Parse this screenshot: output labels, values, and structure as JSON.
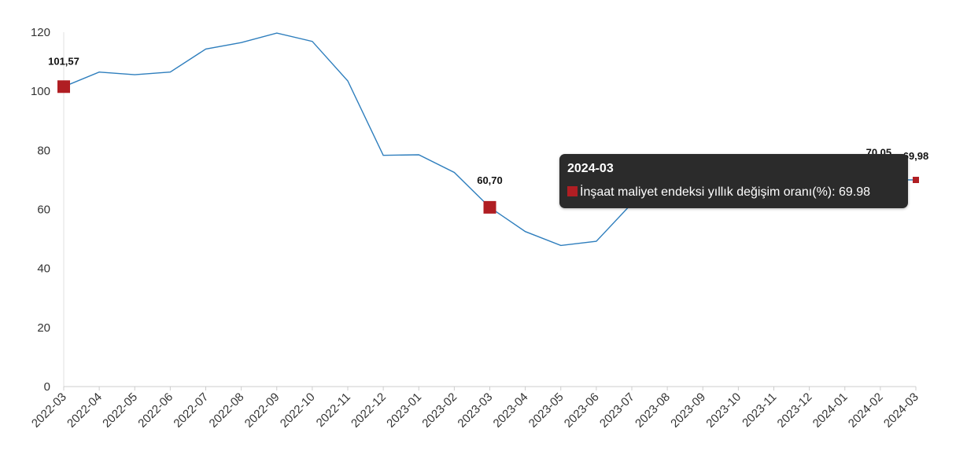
{
  "chart_data": {
    "type": "line",
    "categories": [
      "2022-03",
      "2022-04",
      "2022-05",
      "2022-06",
      "2022-07",
      "2022-08",
      "2022-09",
      "2022-10",
      "2022-11",
      "2022-12",
      "2023-01",
      "2023-02",
      "2023-03",
      "2023-04",
      "2023-05",
      "2023-06",
      "2023-07",
      "2023-08",
      "2023-09",
      "2023-10",
      "2023-11",
      "2023-12",
      "2024-01",
      "2024-02",
      "2024-03"
    ],
    "series": [
      {
        "name": "İnşaat maliyet endeksi yıllık değişim oranı(%)",
        "values": [
          101.57,
          106.5,
          105.6,
          106.5,
          114.3,
          116.5,
          119.7,
          116.9,
          103.5,
          78.3,
          78.5,
          72.5,
          60.7,
          52.5,
          47.8,
          49.2,
          62.0,
          66.0,
          66.5,
          66.0,
          65.5,
          66.0,
          67.0,
          70.05,
          69.98
        ]
      }
    ],
    "ylim": [
      0,
      120
    ],
    "yticks": [
      0,
      20,
      40,
      60,
      80,
      100,
      120
    ],
    "grid": false,
    "line_color": "#2e7ebd",
    "marker_color": "#b01e23",
    "active_marker_color": "#1b2a3e",
    "data_labels": [
      {
        "index": 0,
        "text": "101,57"
      },
      {
        "index": 12,
        "text": "60,70"
      },
      {
        "index": 23,
        "text": "70,05"
      },
      {
        "index": 24,
        "text": "69,98"
      }
    ]
  },
  "tooltip": {
    "title": "2024-03",
    "series_label": "İnşaat maliyet endeksi yıllık değişim oranı(%)",
    "value_text": ": 69.98",
    "swatch_color": "#b01e23"
  }
}
